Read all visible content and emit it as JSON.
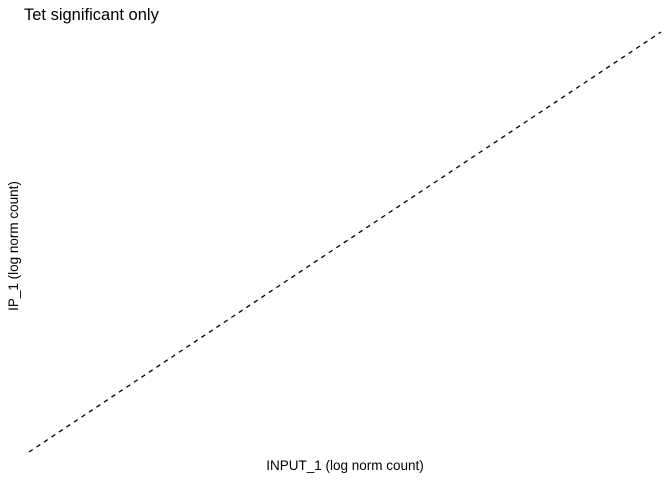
{
  "chart_data": {
    "type": "scatter",
    "title": "Tet significant only",
    "xlabel": "INPUT_1 (log norm count)",
    "ylabel": "IP_1 (log norm count)",
    "series": [],
    "reference_line": {
      "style": "dashed",
      "color": "#000000",
      "slope": 1,
      "intercept": 0
    },
    "grid": false,
    "legend": "none"
  }
}
